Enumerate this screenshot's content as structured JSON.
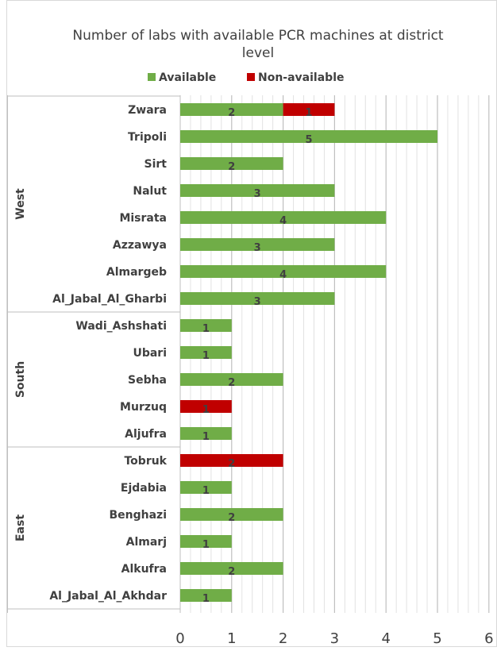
{
  "chart_data": {
    "type": "bar",
    "orientation": "horizontal",
    "stacked": true,
    "title_lines": [
      "Number of labs with available PCR machines at district",
      "level"
    ],
    "legend": {
      "position": "top",
      "entries": [
        {
          "name": "Available",
          "color": "#70ad47"
        },
        {
          "name": "Non-available",
          "color": "#c00000"
        }
      ]
    },
    "groups": [
      {
        "name": "West",
        "categories": [
          "Zwara",
          "Tripoli",
          "Sirt",
          "Nalut",
          "Misrata",
          "Azzawya",
          "Almargeb",
          "Al_Jabal_Al_Gharbi"
        ]
      },
      {
        "name": "South",
        "categories": [
          "Wadi_Ashshati",
          "Ubari",
          "Sebha",
          "Murzuq",
          "Aljufra"
        ]
      },
      {
        "name": "East",
        "categories": [
          "Tobruk",
          "Ejdabia",
          "Benghazi",
          "Almarj",
          "Alkufra",
          "Al_Jabal_Al_Akhdar"
        ]
      }
    ],
    "categories": [
      "Zwara",
      "Tripoli",
      "Sirt",
      "Nalut",
      "Misrata",
      "Azzawya",
      "Almargeb",
      "Al_Jabal_Al_Gharbi",
      "Wadi_Ashshati",
      "Ubari",
      "Sebha",
      "Murzuq",
      "Aljufra",
      "Tobruk",
      "Ejdabia",
      "Benghazi",
      "Almarj",
      "Alkufra",
      "Al_Jabal_Al_Akhdar"
    ],
    "series": [
      {
        "name": "Available",
        "color": "#70ad47",
        "values": [
          2,
          5,
          2,
          3,
          4,
          3,
          4,
          3,
          1,
          1,
          2,
          0,
          1,
          0,
          1,
          2,
          1,
          2,
          1
        ]
      },
      {
        "name": "Non-available",
        "color": "#c00000",
        "values": [
          1,
          0,
          0,
          0,
          0,
          0,
          0,
          0,
          0,
          0,
          0,
          1,
          0,
          2,
          0,
          0,
          0,
          0,
          0
        ]
      }
    ],
    "xlim": [
      0,
      6
    ],
    "xticks": [
      0,
      1,
      2,
      3,
      4,
      5,
      6
    ],
    "grid": {
      "vertical": true,
      "minor_step": 0.2
    },
    "data_labels": true
  }
}
